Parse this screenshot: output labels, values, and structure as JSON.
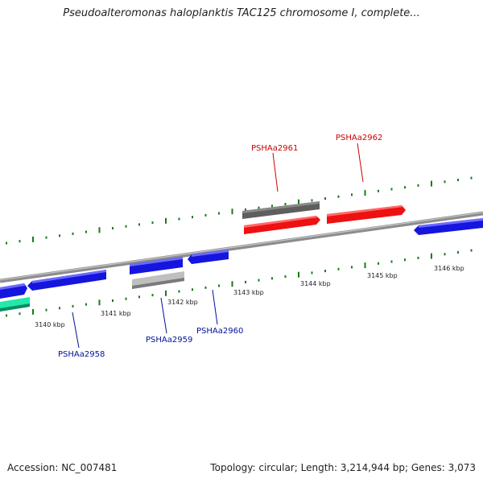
{
  "title": "Pseudoalteromonas haloplanktis TAC125 chromosome I, complete...",
  "footer": {
    "accession": "Accession: NC_007481",
    "summary": "Topology: circular; Length: 3,214,944 bp; Genes: 3,073"
  },
  "colors": {
    "backbone": "#8c8c8c",
    "tick": "#1a7a1a",
    "forward_gene": "#ee1111",
    "reverse_gene": "#1515dd",
    "forward_label": "#cc0000",
    "reverse_label": "#00109a",
    "gray_gene": "#666666",
    "light_gene": "#bfbfbf",
    "teal_gene": "#22e8a8"
  },
  "axis": {
    "unit": "kbp",
    "ticks": [
      {
        "label": "3140 kbp"
      },
      {
        "label": "3141 kbp"
      },
      {
        "label": "3142 kbp"
      },
      {
        "label": "3143 kbp"
      },
      {
        "label": "3144 kbp"
      },
      {
        "label": "3145 kbp"
      },
      {
        "label": "3146 kbp"
      }
    ]
  },
  "genes": [
    {
      "label": "PSHAa2958",
      "strand": "reverse"
    },
    {
      "label": "PSHAa2959",
      "strand": "reverse"
    },
    {
      "label": "PSHAa2960",
      "strand": "reverse"
    },
    {
      "label": "PSHAa2961",
      "strand": "forward"
    },
    {
      "label": "PSHAa2962",
      "strand": "forward"
    }
  ]
}
